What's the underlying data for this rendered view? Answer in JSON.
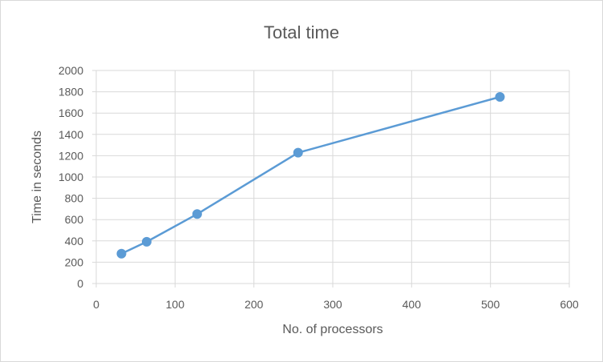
{
  "chart_data": {
    "type": "scatter",
    "title": "Total time",
    "xlabel": "No. of processors",
    "ylabel": "Time in seconds",
    "xlim": [
      0,
      600
    ],
    "ylim": [
      0,
      2000
    ],
    "x_ticks": [
      0,
      100,
      200,
      300,
      400,
      500,
      600
    ],
    "y_ticks": [
      0,
      200,
      400,
      600,
      800,
      1000,
      1200,
      1400,
      1600,
      1800,
      2000
    ],
    "grid": true,
    "legend": "none",
    "series": [
      {
        "color": "#5b9bd5",
        "marker": "circle",
        "line": true,
        "points": [
          {
            "x": 32,
            "y": 280
          },
          {
            "x": 64,
            "y": 392
          },
          {
            "x": 128,
            "y": 652
          },
          {
            "x": 256,
            "y": 1228
          },
          {
            "x": 512,
            "y": 1752
          }
        ]
      }
    ],
    "colors": {
      "grid": "#d9d9d9",
      "text": "#595959",
      "frame": "#d9d9d9"
    }
  }
}
